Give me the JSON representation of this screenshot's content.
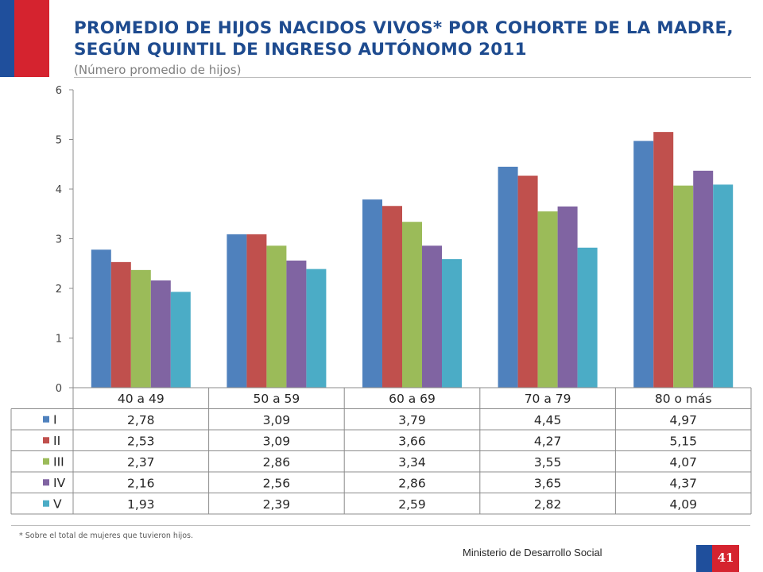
{
  "header": {
    "title": "PROMEDIO DE HIJOS NACIDOS VIVOS* POR COHORTE DE LA MADRE, SEGÚN QUINTIL DE INGRESO AUTÓNOMO 2011",
    "subtitle": "(Número promedio de hijos)"
  },
  "footnote": "* Sobre el total de mujeres que tuvieron hijos.",
  "footer": {
    "ministry": "Ministerio de Desarrollo Social",
    "page_number": "41"
  },
  "chart_data": {
    "type": "bar",
    "categories": [
      "40 a 49",
      "50 a 59",
      "60 a 69",
      "70 a 79",
      "80 o más"
    ],
    "series": [
      {
        "name": "I",
        "color": "#4f81bd",
        "values": [
          2.78,
          3.09,
          3.79,
          4.45,
          4.97
        ],
        "labels": [
          "2,78",
          "3,09",
          "3,79",
          "4,45",
          "4,97"
        ]
      },
      {
        "name": "II",
        "color": "#c0504d",
        "values": [
          2.53,
          3.09,
          3.66,
          4.27,
          5.15
        ],
        "labels": [
          "2,53",
          "3,09",
          "3,66",
          "4,27",
          "5,15"
        ]
      },
      {
        "name": "III",
        "color": "#9bbb59",
        "values": [
          2.37,
          2.86,
          3.34,
          3.55,
          4.07
        ],
        "labels": [
          "2,37",
          "2,86",
          "3,34",
          "3,55",
          "4,07"
        ]
      },
      {
        "name": "IV",
        "color": "#8064a2",
        "values": [
          2.16,
          2.56,
          2.86,
          3.65,
          4.37
        ],
        "labels": [
          "2,16",
          "2,56",
          "2,86",
          "3,65",
          "4,37"
        ]
      },
      {
        "name": "V",
        "color": "#4bacc6",
        "values": [
          1.93,
          2.39,
          2.59,
          2.82,
          4.09
        ],
        "labels": [
          "1,93",
          "2,39",
          "2,59",
          "2,82",
          "4,09"
        ]
      }
    ],
    "ylim": [
      0,
      6
    ],
    "yticks": [
      0,
      1,
      2,
      3,
      4,
      5,
      6
    ],
    "grid": false,
    "legend": "data-table"
  }
}
